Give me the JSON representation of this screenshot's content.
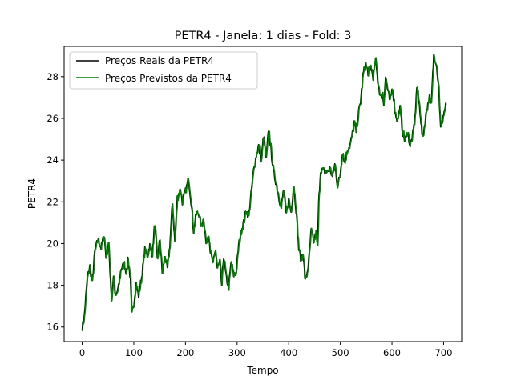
{
  "chart_data": {
    "type": "line",
    "title": "PETR4 - Janela: 1 dias - Fold: 3",
    "xlabel": "Tempo",
    "ylabel": "PETR4",
    "xlim": [
      -35,
      735
    ],
    "ylim": [
      15.3,
      29.45
    ],
    "xticks": [
      0,
      100,
      200,
      300,
      400,
      500,
      600,
      700
    ],
    "yticks": [
      16,
      18,
      20,
      22,
      24,
      26,
      28
    ],
    "grid": false,
    "legend": "top-left",
    "series": [
      {
        "name": "Preços Reais da PETR4",
        "color": "#000000",
        "anchors": [
          [
            0,
            16.0
          ],
          [
            3,
            16.4
          ],
          [
            8,
            18.3
          ],
          [
            12,
            18.9
          ],
          [
            16,
            18.1
          ],
          [
            20,
            19.6
          ],
          [
            25,
            20.2
          ],
          [
            30,
            19.8
          ],
          [
            35,
            20.4
          ],
          [
            38,
            19.4
          ],
          [
            42,
            20.0
          ],
          [
            47,
            17.3
          ],
          [
            50,
            18.4
          ],
          [
            53,
            17.4
          ],
          [
            58,
            17.9
          ],
          [
            62,
            18.8
          ],
          [
            67,
            19.0
          ],
          [
            71,
            18.6
          ],
          [
            73,
            19.3
          ],
          [
            77,
            18.3
          ],
          [
            79,
            16.6
          ],
          [
            82,
            17.0
          ],
          [
            86,
            18.1
          ],
          [
            90,
            17.5
          ],
          [
            95,
            18.4
          ],
          [
            100,
            19.7
          ],
          [
            104,
            19.4
          ],
          [
            108,
            19.9
          ],
          [
            112,
            19.5
          ],
          [
            116,
            21.0
          ],
          [
            120,
            19.2
          ],
          [
            124,
            20.2
          ],
          [
            128,
            18.6
          ],
          [
            132,
            19.4
          ],
          [
            136,
            18.8
          ],
          [
            140,
            19.9
          ],
          [
            144,
            21.9
          ],
          [
            148,
            20.1
          ],
          [
            152,
            22.2
          ],
          [
            157,
            22.6
          ],
          [
            160,
            22.0
          ],
          [
            165,
            22.5
          ],
          [
            170,
            23.1
          ],
          [
            174,
            22.0
          ],
          [
            178,
            20.6
          ],
          [
            182,
            21.4
          ],
          [
            186,
            21.5
          ],
          [
            190,
            20.8
          ],
          [
            194,
            21.2
          ],
          [
            198,
            20.0
          ],
          [
            202,
            20.5
          ],
          [
            205,
            19.6
          ],
          [
            209,
            19.0
          ],
          [
            213,
            19.7
          ],
          [
            216,
            18.8
          ],
          [
            220,
            19.1
          ],
          [
            223,
            18.0
          ],
          [
            226,
            19.4
          ],
          [
            230,
            18.4
          ],
          [
            234,
            17.9
          ],
          [
            238,
            19.1
          ],
          [
            242,
            18.5
          ],
          [
            246,
            18.6
          ],
          [
            250,
            19.9
          ],
          [
            254,
            20.6
          ],
          [
            258,
            21.0
          ],
          [
            262,
            21.6
          ],
          [
            266,
            21.3
          ],
          [
            270,
            22.4
          ],
          [
            274,
            23.5
          ],
          [
            278,
            24.2
          ],
          [
            282,
            24.7
          ],
          [
            286,
            23.9
          ],
          [
            290,
            25.2
          ],
          [
            294,
            24.0
          ],
          [
            298,
            25.5
          ],
          [
            302,
            24.4
          ],
          [
            306,
            23.4
          ],
          [
            310,
            22.9
          ],
          [
            314,
            22.3
          ],
          [
            318,
            21.7
          ],
          [
            322,
            22.6
          ],
          [
            326,
            21.4
          ],
          [
            330,
            22.1
          ],
          [
            334,
            21.5
          ],
          [
            338,
            22.8
          ],
          [
            342,
            21.6
          ],
          [
            346,
            19.8
          ],
          [
            350,
            19.2
          ],
          [
            353,
            19.6
          ],
          [
            356,
            18.4
          ],
          [
            358,
            18.3
          ],
          [
            362,
            19.1
          ],
          [
            366,
            20.6
          ],
          [
            370,
            20.1
          ],
          [
            374,
            20.5
          ],
          [
            376,
            19.8
          ],
          [
            378,
            21.9
          ],
          [
            381,
            23.5
          ],
          [
            386,
            23.5
          ],
          [
            391,
            23.4
          ],
          [
            396,
            23.6
          ],
          [
            400,
            23.2
          ],
          [
            404,
            23.8
          ],
          [
            408,
            22.8
          ],
          [
            412,
            23.2
          ],
          [
            416,
            24.4
          ],
          [
            420,
            23.9
          ],
          [
            424,
            24.5
          ],
          [
            428,
            24.7
          ],
          [
            431,
            25.1
          ],
          [
            435,
            25.8
          ],
          [
            438,
            25.4
          ],
          [
            442,
            26.3
          ],
          [
            445,
            26.8
          ],
          [
            449,
            28.1
          ],
          [
            453,
            28.6
          ],
          [
            457,
            28.2
          ],
          [
            461,
            28.5
          ],
          [
            465,
            28.0
          ],
          [
            469,
            28.8
          ],
          [
            473,
            27.7
          ],
          [
            477,
            27.0
          ],
          [
            480,
            27.2
          ],
          [
            482,
            26.7
          ],
          [
            485,
            28.0
          ],
          [
            488,
            27.4
          ],
          [
            492,
            26.8
          ],
          [
            496,
            27.5
          ],
          [
            500,
            26.3
          ],
          [
            504,
            25.9
          ],
          [
            508,
            26.5
          ],
          [
            512,
            25.4
          ],
          [
            516,
            24.9
          ],
          [
            520,
            25.4
          ],
          [
            524,
            24.7
          ],
          [
            528,
            25.1
          ],
          [
            532,
            26.0
          ],
          [
            535,
            27.5
          ],
          [
            540,
            26.4
          ],
          [
            544,
            25.0
          ],
          [
            548,
            25.8
          ],
          [
            551,
            26.5
          ],
          [
            555,
            27.0
          ],
          [
            558,
            26.6
          ],
          [
            562,
            29.0
          ],
          [
            566,
            28.7
          ],
          [
            570,
            27.5
          ],
          [
            573,
            25.5
          ],
          [
            577,
            26.1
          ],
          [
            582,
            26.7
          ]
        ]
      },
      {
        "name": "Preços Previstos da PETR4",
        "color": "#008000"
      }
    ]
  }
}
